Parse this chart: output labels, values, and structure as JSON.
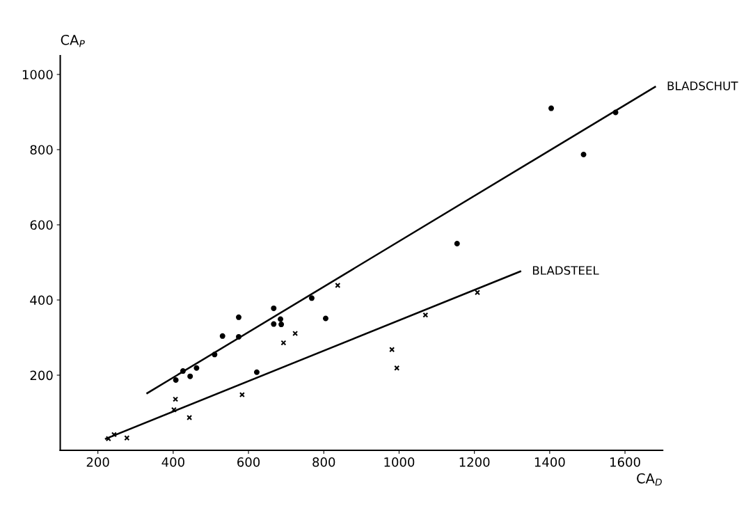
{
  "chart_data": {
    "type": "scatter",
    "xlabel": "CA$_{D}$",
    "ylabel": "CA$_{P}$",
    "xlim": [
      100,
      1700
    ],
    "ylim": [
      0,
      1050
    ],
    "xticks": [
      200,
      400,
      600,
      800,
      1000,
      1200,
      1400,
      1600
    ],
    "yticks": [
      200,
      400,
      600,
      800,
      1000
    ],
    "grid": false,
    "legend": false,
    "series": [
      {
        "marker": "circle",
        "color": "#000000",
        "x": [
          407,
          426,
          445,
          462,
          510,
          531,
          574,
          574,
          622,
          667,
          667,
          685,
          687,
          768,
          805,
          1154,
          1404,
          1490,
          1575
        ],
        "values": [
          187,
          211,
          197,
          219,
          255,
          304,
          354,
          302,
          208,
          378,
          336,
          349,
          335,
          405,
          351,
          550,
          910,
          787,
          899
        ]
      },
      {
        "marker": "cross",
        "color": "#000000",
        "x": [
          228,
          243,
          277,
          402,
          406,
          443,
          583,
          693,
          724,
          837,
          981,
          994,
          1070,
          1208
        ],
        "values": [
          31,
          42,
          33,
          108,
          136,
          87,
          148,
          286,
          311,
          439,
          268,
          219,
          360,
          420
        ]
      },
      {
        "type": "line",
        "name": "BLADSCHUT",
        "color": "#000000",
        "line_style": "solid",
        "x": [
          331,
          1680
        ],
        "values": [
          152,
          967
        ]
      },
      {
        "type": "line",
        "name": "BLADSTEEL",
        "color": "#000000",
        "line_style": "solid",
        "x": [
          221,
          1322
        ],
        "values": [
          31,
          476
        ]
      }
    ]
  }
}
